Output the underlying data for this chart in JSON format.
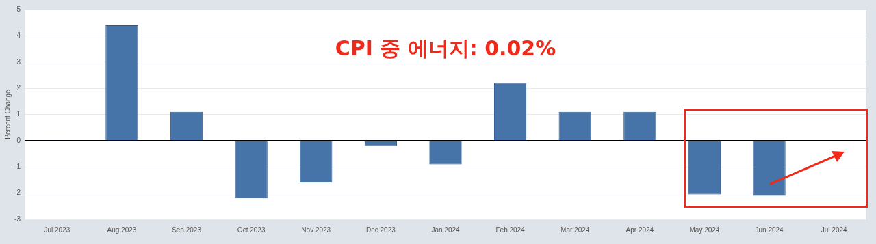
{
  "chart_data": {
    "type": "bar",
    "ylabel": "Percent Change",
    "categories": [
      "Jul 2023",
      "Aug 2023",
      "Sep 2023",
      "Oct 2023",
      "Nov 2023",
      "Dec 2023",
      "Jan 2024",
      "Feb 2024",
      "Mar 2024",
      "Apr 2024",
      "May 2024",
      "Jun 2024",
      "Jul 2024"
    ],
    "values": [
      -0.03,
      4.4,
      1.1,
      -2.2,
      -1.6,
      -0.2,
      -0.9,
      2.2,
      1.1,
      1.1,
      -2.05,
      -2.1,
      null
    ],
    "color": "#4674a8",
    "ylim": [
      -3,
      5
    ],
    "yticks": [
      -3,
      -2,
      -1,
      0,
      1,
      2,
      3,
      4,
      5
    ],
    "grid": "y",
    "annotations": [
      "CPI 중 에너지: 0.02%"
    ]
  }
}
